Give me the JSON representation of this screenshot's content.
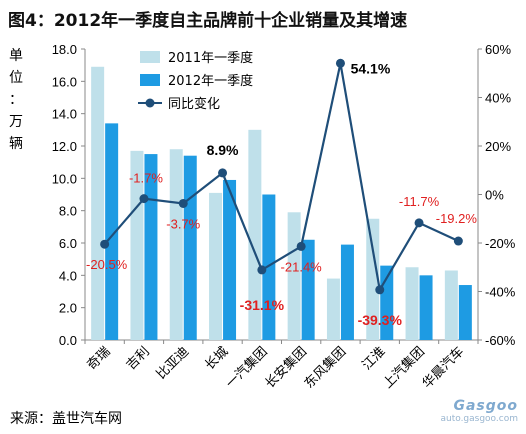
{
  "title": "图4：2012年一季度自主品牌前十企业销量及其增速",
  "source": "来源：盖世汽车网",
  "watermark": {
    "logo": "Gasgoo",
    "url": "auto.gasgoo.com"
  },
  "colors": {
    "series2011": "#bfe0ea",
    "series2012": "#1e9be3",
    "line": "#1f4e79",
    "neg_label": "#e02020",
    "pos_label": "#000000"
  },
  "chart_data": {
    "type": "bar",
    "categories": [
      "奇瑞",
      "吉利",
      "比亚迪",
      "长城",
      "一汽集团",
      "长安集团",
      "东风集团",
      "江淮",
      "上汽集团",
      "华晨汽车"
    ],
    "ylabel": "单位：万辆",
    "ylim": [
      0,
      18
    ],
    "yticks": [
      "0.0",
      "2.0",
      "4.0",
      "6.0",
      "8.0",
      "10.0",
      "12.0",
      "14.0",
      "16.0",
      "18.0"
    ],
    "y2lim": [
      -60,
      60
    ],
    "y2ticks": [
      "-60%",
      "-40%",
      "-20%",
      "0%",
      "20%",
      "40%",
      "60%"
    ],
    "legend_position": "top-left",
    "series": [
      {
        "name": "2011年一季度",
        "type": "bar",
        "values": [
          16.9,
          11.7,
          11.8,
          9.1,
          13.0,
          7.9,
          3.8,
          7.5,
          4.5,
          4.3
        ]
      },
      {
        "name": "2012年一季度",
        "type": "bar",
        "values": [
          13.4,
          11.5,
          11.4,
          9.9,
          9.0,
          6.2,
          5.9,
          4.6,
          4.0,
          3.4
        ]
      },
      {
        "name": "同比变化",
        "type": "line",
        "axis": "right",
        "values": [
          -20.5,
          -1.7,
          -3.7,
          8.9,
          -31.1,
          -21.4,
          54.1,
          -39.3,
          -11.7,
          -19.2
        ],
        "labels": [
          "-20.5%",
          "-1.7%",
          "-3.7%",
          "8.9%",
          "-31.1%",
          "-21.4%",
          "54.1%",
          "-39.3%",
          "-11.7%",
          "-19.2%"
        ]
      }
    ]
  }
}
